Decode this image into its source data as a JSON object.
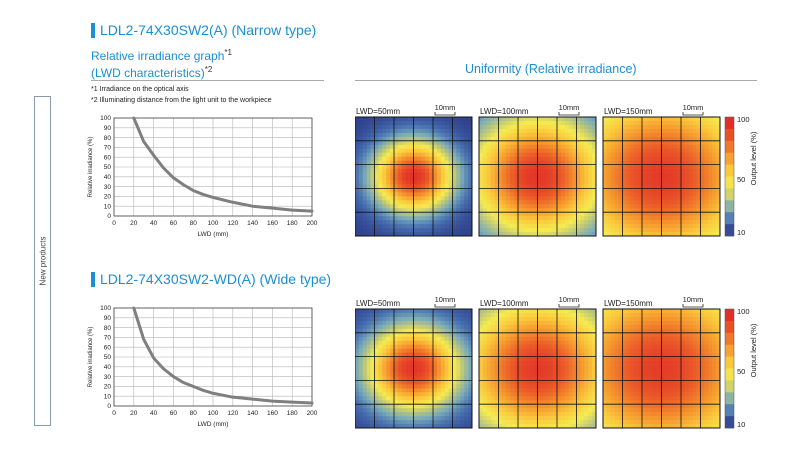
{
  "sidebar_label": "New products",
  "sections": [
    {
      "title": "LDL2-74X30SW2(A) (Narrow type)",
      "subtitle_line1": "Relative irradiance graph",
      "subtitle_line1_sup": "*1",
      "subtitle_line2": "(LWD characteristics)",
      "subtitle_line2_sup": "*2",
      "uniformity_title": "Uniformity (Relative irradiance)",
      "note1": "*1 Irradiance on the optical axis",
      "note2": "*2 Illuminating distance from the light unit to the workpiece",
      "maps": [
        {
          "label": "LWD=50mm",
          "scale": "10mm",
          "spread": 0.55,
          "peak": 0.92
        },
        {
          "label": "LWD=100mm",
          "scale": "10mm",
          "spread": 0.95,
          "peak": 0.9
        },
        {
          "label": "LWD=150mm",
          "scale": "10mm",
          "spread": 1.35,
          "peak": 0.88
        }
      ]
    },
    {
      "title": "LDL2-74X30SW2-WD(A)  (Wide type)",
      "maps": [
        {
          "label": "LWD=50mm",
          "scale": "10mm",
          "spread": 0.65,
          "peak": 0.9
        },
        {
          "label": "LWD=100mm",
          "scale": "10mm",
          "spread": 1.1,
          "peak": 0.88
        },
        {
          "label": "LWD=150mm",
          "scale": "10mm",
          "spread": 1.45,
          "peak": 0.87
        }
      ]
    }
  ],
  "colorbar": {
    "label": "Output level (%)",
    "ticks": [
      "100",
      "50",
      "10"
    ]
  },
  "chart_data": [
    {
      "type": "line",
      "xlabel": "LWD (mm)",
      "ylabel": "Relative irradiance (%)",
      "xlim": [
        0,
        200
      ],
      "ylim": [
        0,
        100
      ],
      "xticks": [
        "0",
        "20",
        "40",
        "60",
        "80",
        "100",
        "120",
        "140",
        "160",
        "180",
        "200"
      ],
      "yticks": [
        "0",
        "10",
        "20",
        "30",
        "40",
        "50",
        "60",
        "70",
        "80",
        "90",
        "100"
      ],
      "grid": true,
      "x": [
        20,
        30,
        40,
        50,
        60,
        70,
        80,
        90,
        100,
        120,
        140,
        160,
        180,
        200
      ],
      "y": [
        100,
        76,
        62,
        49,
        39,
        32,
        26,
        22,
        19,
        14,
        10,
        8,
        6,
        5
      ]
    },
    {
      "type": "line",
      "xlabel": "LWD (mm)",
      "ylabel": "Relative irradiance (%)",
      "xlim": [
        0,
        200
      ],
      "ylim": [
        0,
        100
      ],
      "xticks": [
        "0",
        "20",
        "40",
        "60",
        "80",
        "100",
        "120",
        "140",
        "160",
        "180",
        "200"
      ],
      "yticks": [
        "0",
        "10",
        "20",
        "30",
        "40",
        "50",
        "60",
        "70",
        "80",
        "90",
        "100"
      ],
      "grid": true,
      "x": [
        20,
        30,
        40,
        50,
        60,
        70,
        80,
        90,
        100,
        120,
        140,
        160,
        180,
        200
      ],
      "y": [
        100,
        68,
        49,
        38,
        30,
        24,
        20,
        16,
        13,
        9,
        7,
        5,
        4,
        3
      ]
    }
  ]
}
